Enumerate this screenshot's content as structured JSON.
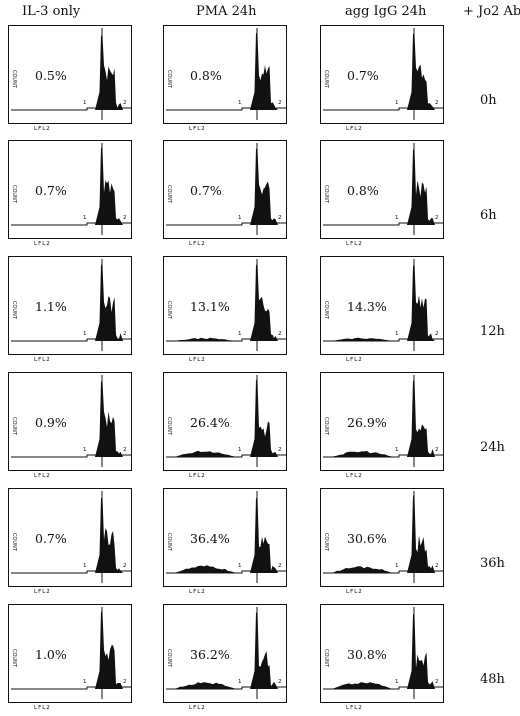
{
  "chart_data": {
    "type": "histogram-grid",
    "columns": [
      "IL-3 only",
      "PMA  24h",
      "agg IgG  24h"
    ],
    "treatment_label": "+ Jo2 Ab",
    "rows": [
      "0h",
      "6h",
      "12h",
      "24h",
      "36h",
      "48h"
    ],
    "y_axis_label": "COUNT",
    "x_axis_label": "LFL2",
    "gate_markers": [
      "1",
      "2"
    ],
    "values": [
      [
        "0.5%",
        "0.8%",
        "0.7%"
      ],
      [
        "0.7%",
        "0.7%",
        "0.8%"
      ],
      [
        "1.1%",
        "13.1%",
        "14.3%"
      ],
      [
        "0.9%",
        "26.4%",
        "26.9%"
      ],
      [
        "0.7%",
        "36.4%",
        "30.6%"
      ],
      [
        "1.0%",
        "36.2%",
        "30.8%"
      ]
    ]
  }
}
